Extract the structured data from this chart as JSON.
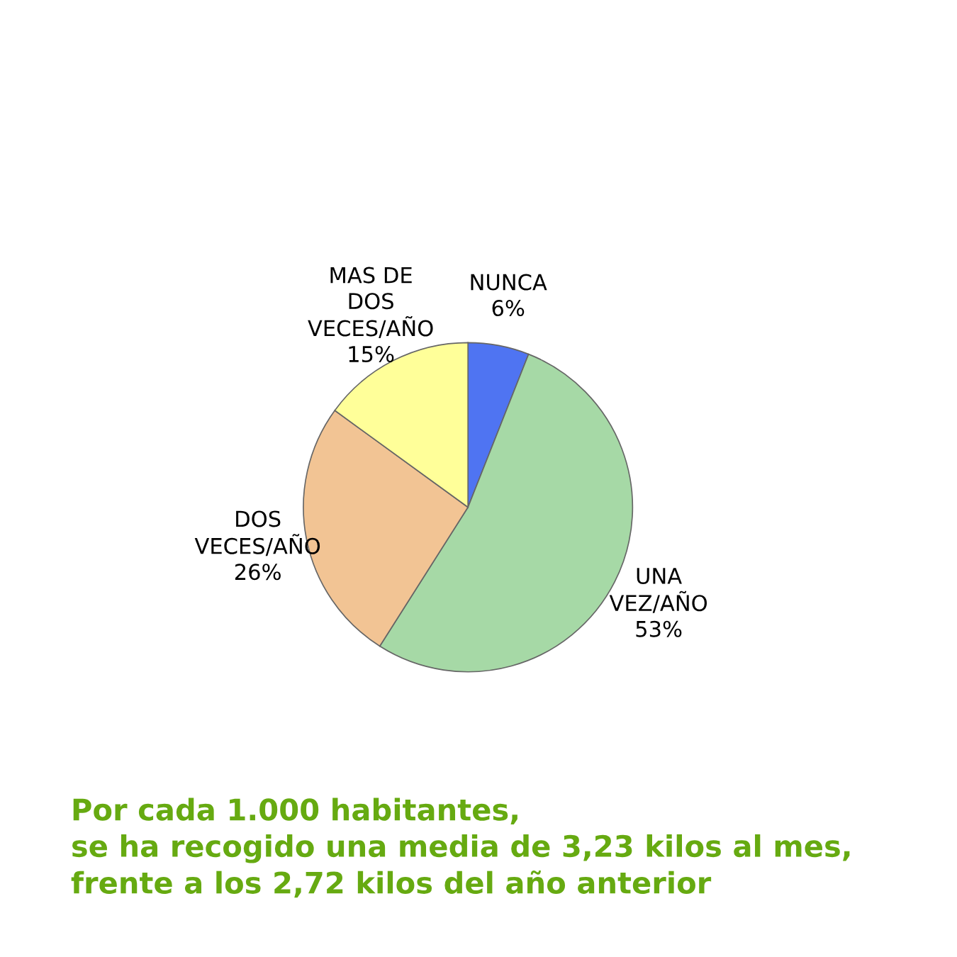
{
  "chart_data": {
    "type": "pie",
    "categories": [
      "NUNCA",
      "UNA\nVEZ/AÑO",
      "DOS\nVECES/AÑO",
      "MAS DE\nDOS\nVECES/AÑO"
    ],
    "values": [
      6,
      53,
      26,
      15
    ],
    "value_labels": [
      "6%",
      "53%",
      "26%",
      "15%"
    ],
    "colors": [
      "#4f74f2",
      "#a6d9a6",
      "#f2c494",
      "#ffff99"
    ],
    "annotations": [
      "Por cada 1.000 habitantes,\nse ha recogido una media de 3,23 kilos al mes,\nfrente a los 2,72 kilos del año anterior"
    ]
  }
}
